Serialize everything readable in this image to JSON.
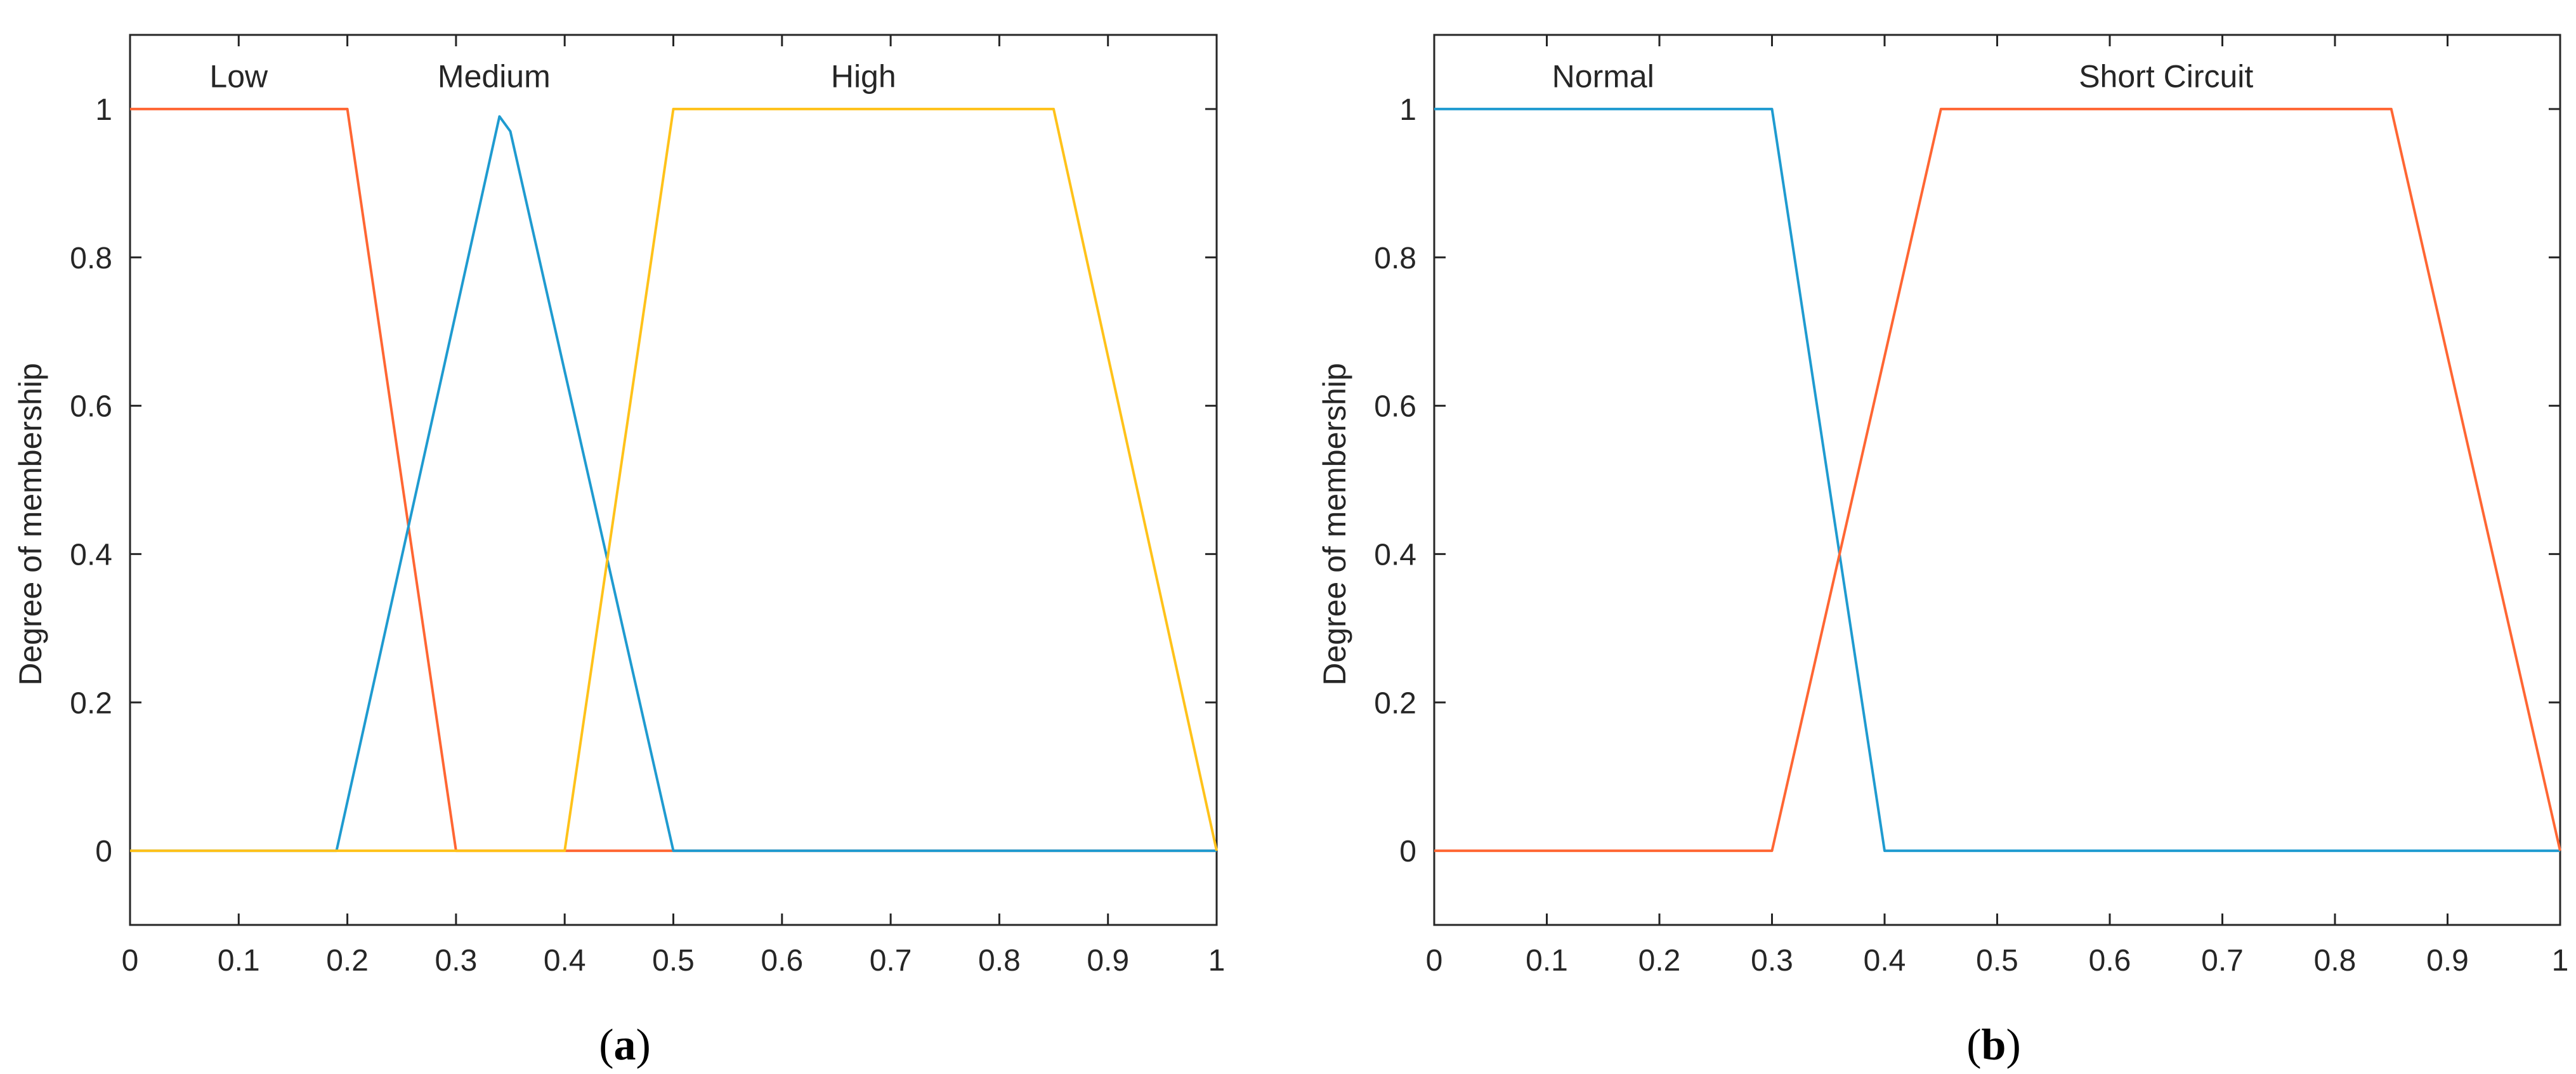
{
  "chart_data": [
    {
      "type": "line",
      "panel": "a",
      "caption_letter": "a",
      "ylabel": "Degree of membership",
      "xlim": [
        0,
        1
      ],
      "ylim": [
        -0.1,
        1.1
      ],
      "xticks": [
        "0",
        "0.1",
        "0.2",
        "0.3",
        "0.4",
        "0.5",
        "0.6",
        "0.7",
        "0.8",
        "0.9",
        "1"
      ],
      "yticks": [
        "0",
        "0.2",
        "0.4",
        "0.6",
        "0.8",
        "1"
      ],
      "grid": false,
      "series": [
        {
          "name": "Low",
          "color": "#ff6633",
          "x": [
            0,
            0.2,
            0.3,
            1
          ],
          "y": [
            1,
            1,
            0,
            0
          ],
          "label_x": 0.1,
          "label_y": 1.045
        },
        {
          "name": "Medium",
          "color": "#1f9bd0",
          "x": [
            0,
            0.19,
            0.34,
            0.35,
            0.5,
            1
          ],
          "y": [
            0,
            0,
            0.99,
            0.97,
            0,
            0
          ],
          "label_x": 0.335,
          "label_y": 1.045
        },
        {
          "name": "High",
          "color": "#ffc21a",
          "x": [
            0,
            0.4,
            0.5,
            0.85,
            1
          ],
          "y": [
            0,
            0,
            1,
            1,
            0
          ],
          "label_x": 0.675,
          "label_y": 1.045
        }
      ]
    },
    {
      "type": "line",
      "panel": "b",
      "caption_letter": "b",
      "ylabel": "Degree of membership",
      "xlim": [
        0,
        1
      ],
      "ylim": [
        -0.1,
        1.1
      ],
      "xticks": [
        "0",
        "0.1",
        "0.2",
        "0.3",
        "0.4",
        "0.5",
        "0.6",
        "0.7",
        "0.8",
        "0.9",
        "1"
      ],
      "yticks": [
        "0",
        "0.2",
        "0.4",
        "0.6",
        "0.8",
        "1"
      ],
      "grid": false,
      "series": [
        {
          "name": "Normal",
          "color": "#1f9bd0",
          "x": [
            0,
            0.3,
            0.4,
            1
          ],
          "y": [
            1,
            1,
            0,
            0
          ],
          "label_x": 0.15,
          "label_y": 1.045
        },
        {
          "name": "Short Circuit",
          "color": "#ff6633",
          "x": [
            0,
            0.3,
            0.45,
            0.85,
            1
          ],
          "y": [
            0,
            0,
            1,
            1,
            0
          ],
          "label_x": 0.65,
          "label_y": 1.045
        }
      ]
    }
  ]
}
